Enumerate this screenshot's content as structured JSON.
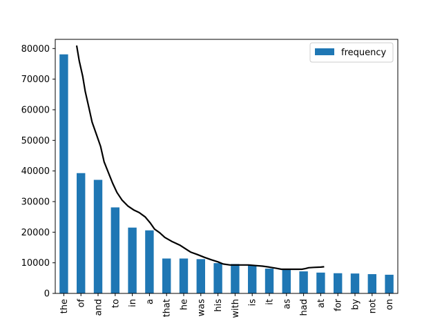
{
  "chart_data": {
    "type": "bar",
    "categories": [
      "the",
      "of",
      "and",
      "to",
      "in",
      "a",
      "that",
      "he",
      "was",
      "his",
      "with",
      "is",
      "it",
      "as",
      "had",
      "at",
      "for",
      "by",
      "not",
      "on"
    ],
    "series": [
      {
        "name": "frequency",
        "values": [
          78100,
          39300,
          37100,
          28100,
          21500,
          20600,
          11400,
          11400,
          11200,
          9900,
          9600,
          9200,
          8100,
          7900,
          7200,
          6800,
          6600,
          6500,
          6300,
          6100
        ]
      }
    ],
    "overlay_line": {
      "points": [
        [
          0.75,
          81000
        ],
        [
          0.9,
          76000
        ],
        [
          1.1,
          71000
        ],
        [
          1.25,
          66000
        ],
        [
          1.45,
          61000
        ],
        [
          1.65,
          56000
        ],
        [
          1.9,
          52000
        ],
        [
          2.15,
          48000
        ],
        [
          2.35,
          43000
        ],
        [
          2.6,
          39500
        ],
        [
          2.85,
          36000
        ],
        [
          3.1,
          33000
        ],
        [
          3.4,
          30500
        ],
        [
          3.75,
          28500
        ],
        [
          4.1,
          27200
        ],
        [
          4.4,
          26400
        ],
        [
          4.75,
          25000
        ],
        [
          5.05,
          23000
        ],
        [
          5.3,
          21000
        ],
        [
          5.6,
          19800
        ],
        [
          5.9,
          18300
        ],
        [
          6.3,
          17000
        ],
        [
          6.8,
          15700
        ],
        [
          7.1,
          14600
        ],
        [
          7.4,
          13500
        ],
        [
          7.8,
          12700
        ],
        [
          8.2,
          11800
        ],
        [
          8.6,
          11000
        ],
        [
          9.0,
          10300
        ],
        [
          9.3,
          9600
        ],
        [
          9.7,
          9300
        ],
        [
          10.2,
          9300
        ],
        [
          10.8,
          9300
        ],
        [
          11.2,
          9100
        ],
        [
          11.6,
          8900
        ],
        [
          12.0,
          8600
        ],
        [
          12.4,
          8200
        ],
        [
          12.7,
          7900
        ],
        [
          13.3,
          7900
        ],
        [
          13.9,
          7900
        ],
        [
          14.1,
          8100
        ],
        [
          14.3,
          8400
        ],
        [
          14.6,
          8500
        ],
        [
          15.0,
          8600
        ],
        [
          15.2,
          8700
        ]
      ],
      "color": "#000000"
    },
    "ylim": [
      0,
      83000
    ],
    "yticks": [
      0,
      10000,
      20000,
      30000,
      40000,
      50000,
      60000,
      70000,
      80000
    ],
    "title": "",
    "xlabel": "",
    "ylabel": "",
    "legend": {
      "position": "top-right",
      "label": "frequency"
    },
    "grid": false,
    "bar_color": "#1f77b4"
  }
}
